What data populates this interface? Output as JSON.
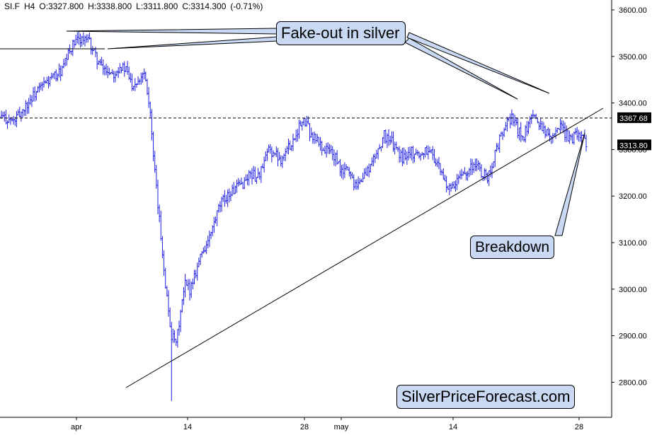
{
  "chart_header": {
    "symbol": "SI.F",
    "timeframe": "H4",
    "open": "O:3327.800",
    "high": "H:3338.800",
    "low": "L:3311.800",
    "close": "C:3314.300",
    "change": "(-0.71%)"
  },
  "annotations": {
    "fakeout": "Fake-out in silver",
    "breakdown": "Breakdown",
    "watermark": "SilverPriceForecast.com"
  },
  "price_labels": {
    "resistance": "3367.68",
    "last": "3313.80"
  },
  "colors": {
    "bars": "#1f1fe0",
    "callout_bg": "#c9d9f3",
    "price_label_bg": "#000000"
  },
  "chart_data": {
    "type": "ohlc",
    "ylim": [
      2700,
      3620
    ],
    "y_ticks": [
      "2800.00",
      "2900.00",
      "3000.00",
      "3100.00",
      "3200.00",
      "3300.00",
      "3400.00",
      "3500.00",
      "3600.00"
    ],
    "x_ticks": [
      "apr",
      "14",
      "28",
      "may",
      "14",
      "28"
    ],
    "resistance_level": 3367.68,
    "last_price": 3313.8,
    "close_path": [
      [
        0,
        3370
      ],
      [
        8,
        3360
      ],
      [
        14,
        3385
      ],
      [
        22,
        3420
      ],
      [
        28,
        3440
      ],
      [
        34,
        3455
      ],
      [
        40,
        3470
      ],
      [
        46,
        3520
      ],
      [
        52,
        3540
      ],
      [
        58,
        3530
      ],
      [
        62,
        3500
      ],
      [
        66,
        3475
      ],
      [
        70,
        3470
      ],
      [
        74,
        3465
      ],
      [
        78,
        3480
      ],
      [
        82,
        3470
      ],
      [
        86,
        3440
      ],
      [
        90,
        3450
      ],
      [
        94,
        3470
      ],
      [
        96,
        3430
      ],
      [
        98,
        3380
      ],
      [
        100,
        3280
      ],
      [
        103,
        3180
      ],
      [
        106,
        3080
      ],
      [
        109,
        2980
      ],
      [
        112,
        2900
      ],
      [
        115,
        2880
      ],
      [
        118,
        2950
      ],
      [
        121,
        3010
      ],
      [
        124,
        3000
      ],
      [
        128,
        3040
      ],
      [
        132,
        3080
      ],
      [
        136,
        3100
      ],
      [
        140,
        3140
      ],
      [
        144,
        3180
      ],
      [
        148,
        3200
      ],
      [
        152,
        3210
      ],
      [
        156,
        3220
      ],
      [
        160,
        3230
      ],
      [
        164,
        3250
      ],
      [
        168,
        3240
      ],
      [
        172,
        3260
      ],
      [
        176,
        3300
      ],
      [
        180,
        3290
      ],
      [
        184,
        3280
      ],
      [
        188,
        3300
      ],
      [
        192,
        3320
      ],
      [
        196,
        3350
      ],
      [
        200,
        3360
      ],
      [
        204,
        3330
      ],
      [
        208,
        3320
      ],
      [
        212,
        3300
      ],
      [
        216,
        3300
      ],
      [
        220,
        3280
      ],
      [
        224,
        3250
      ],
      [
        228,
        3260
      ],
      [
        232,
        3230
      ],
      [
        236,
        3230
      ],
      [
        240,
        3250
      ],
      [
        244,
        3270
      ],
      [
        248,
        3300
      ],
      [
        252,
        3330
      ],
      [
        256,
        3320
      ],
      [
        260,
        3300
      ],
      [
        264,
        3280
      ],
      [
        268,
        3300
      ],
      [
        272,
        3290
      ],
      [
        276,
        3290
      ],
      [
        280,
        3300
      ],
      [
        284,
        3290
      ],
      [
        288,
        3260
      ],
      [
        292,
        3230
      ],
      [
        296,
        3210
      ],
      [
        300,
        3230
      ],
      [
        304,
        3250
      ],
      [
        308,
        3260
      ],
      [
        312,
        3270
      ],
      [
        316,
        3250
      ],
      [
        320,
        3240
      ],
      [
        324,
        3280
      ],
      [
        328,
        3320
      ],
      [
        332,
        3350
      ],
      [
        336,
        3370
      ],
      [
        340,
        3340
      ],
      [
        344,
        3330
      ],
      [
        348,
        3360
      ],
      [
        352,
        3370
      ],
      [
        356,
        3350
      ],
      [
        360,
        3330
      ],
      [
        364,
        3340
      ],
      [
        368,
        3350
      ],
      [
        372,
        3330
      ],
      [
        376,
        3325
      ],
      [
        380,
        3340
      ],
      [
        384,
        3314
      ]
    ]
  }
}
